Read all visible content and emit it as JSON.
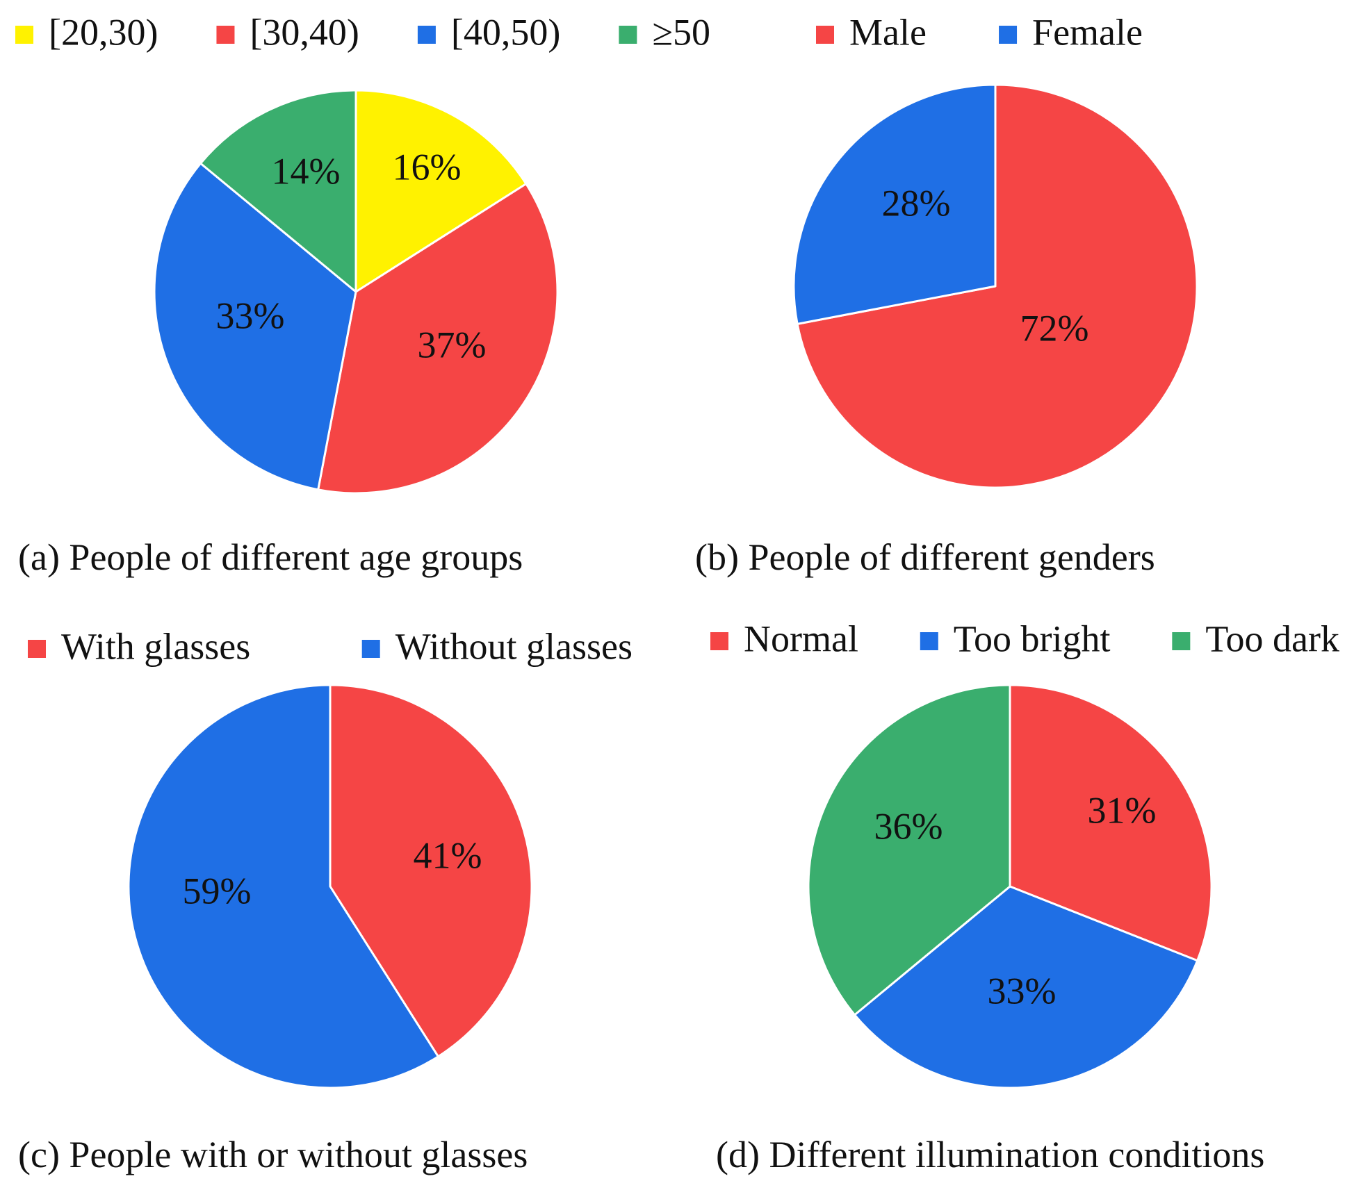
{
  "figure": {
    "colors": {
      "yellow": "#fff200",
      "red": "#f54545",
      "blue": "#1f6fe5",
      "green": "#3aae6e"
    }
  },
  "chart_data": [
    {
      "id": "a",
      "type": "pie",
      "title": "(a) People of different age groups",
      "legend": [
        "[20,30)",
        "[30,40)",
        "[40,50)",
        "≥50"
      ],
      "slices": [
        {
          "label": "[20,30)",
          "value": 16,
          "display": "16%",
          "color": "#fff200"
        },
        {
          "label": "[30,40)",
          "value": 37,
          "display": "37%",
          "color": "#f54545"
        },
        {
          "label": "[40,50)",
          "value": 33,
          "display": "33%",
          "color": "#1f6fe5"
        },
        {
          "label": "≥50",
          "value": 14,
          "display": "14%",
          "color": "#3aae6e"
        }
      ]
    },
    {
      "id": "b",
      "type": "pie",
      "title": "(b) People of different genders",
      "legend": [
        "Male",
        "Female"
      ],
      "slices": [
        {
          "label": "Male",
          "value": 72,
          "display": "72%",
          "color": "#f54545"
        },
        {
          "label": "Female",
          "value": 28,
          "display": "28%",
          "color": "#1f6fe5"
        }
      ]
    },
    {
      "id": "c",
      "type": "pie",
      "title": "(c) People with or without glasses",
      "legend": [
        "With glasses",
        "Without glasses"
      ],
      "slices": [
        {
          "label": "With glasses",
          "value": 41,
          "display": "41%",
          "color": "#f54545"
        },
        {
          "label": "Without glasses",
          "value": 59,
          "display": "59%",
          "color": "#1f6fe5"
        }
      ]
    },
    {
      "id": "d",
      "type": "pie",
      "title": "(d) Different illumination conditions",
      "legend": [
        "Normal",
        "Too bright",
        "Too dark"
      ],
      "slices": [
        {
          "label": "Normal",
          "value": 31,
          "display": "31%",
          "color": "#f54545"
        },
        {
          "label": "Too bright",
          "value": 33,
          "display": "33%",
          "color": "#1f6fe5"
        },
        {
          "label": "Too dark",
          "value": 36,
          "display": "36%",
          "color": "#3aae6e"
        }
      ]
    }
  ]
}
